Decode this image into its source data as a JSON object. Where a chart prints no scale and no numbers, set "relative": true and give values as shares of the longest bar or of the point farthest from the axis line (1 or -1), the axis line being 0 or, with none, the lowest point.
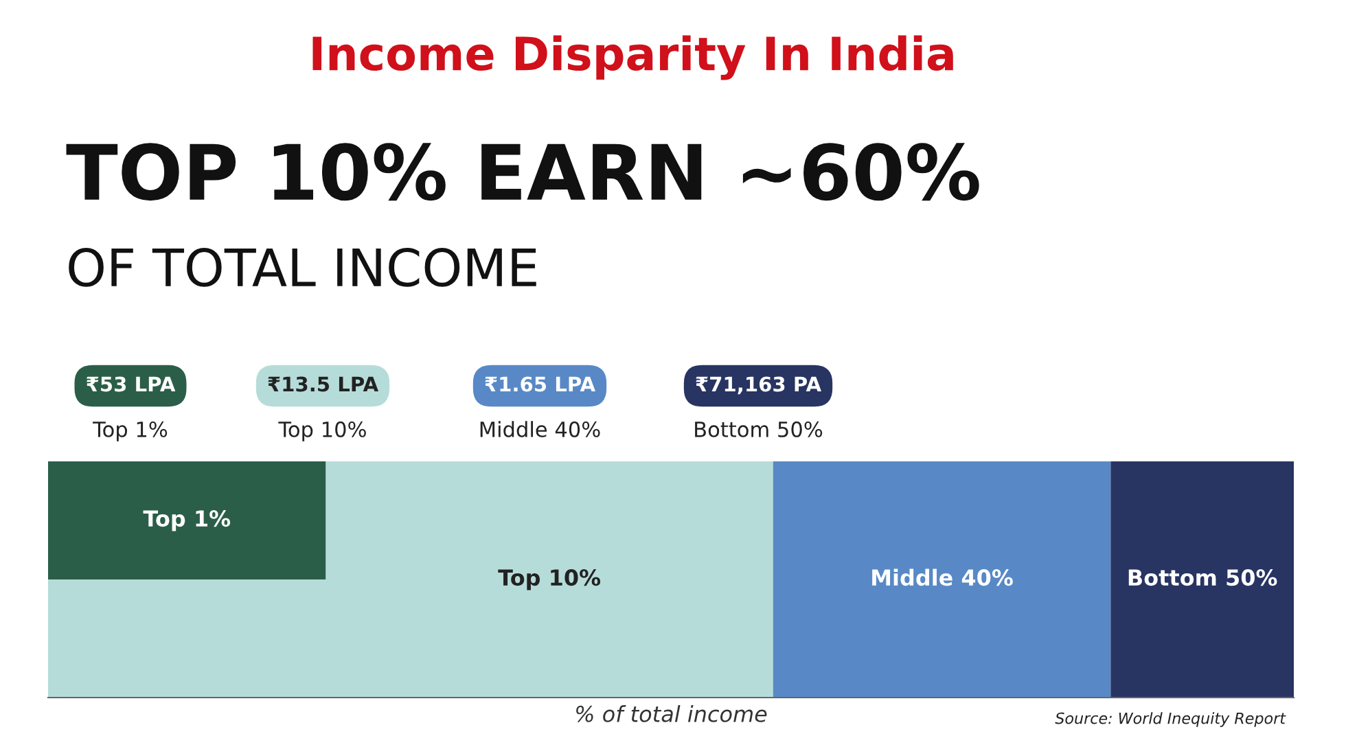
{
  "chart_data": {
    "type": "bar",
    "orientation": "horizontal",
    "stacked": true,
    "relative": true,
    "title": "Income Disparity In India",
    "subtitle": "TOP 10% EARN ~60%\nOF TOTAL INCOME",
    "xlabel": "% of total income",
    "categories": [
      null,
      null
    ],
    "series": [
      {
        "name": "Top 1%",
        "color": "#2b5e48",
        "values": [
          0.223,
          0
        ]
      },
      {
        "name": "Top 10%",
        "color": "#b6dcd9",
        "values": [
          0.359,
          0.582
        ]
      },
      {
        "name": "Middle 40%",
        "color": "#5889c6",
        "values": [
          0.271,
          0.271
        ]
      },
      {
        "name": "Bottom 50%",
        "color": "#283462",
        "values": [
          0.147,
          0.147
        ]
      }
    ],
    "annotations": [
      "₹53 LPA",
      "Top 1%",
      "₹13.5 LPA",
      "Top 10%",
      "₹1.65 LPA",
      "Middle 40%",
      "₹71,163 PA",
      "Bottom 50%",
      "Source: World Inequity Report"
    ],
    "legend": false
  }
}
